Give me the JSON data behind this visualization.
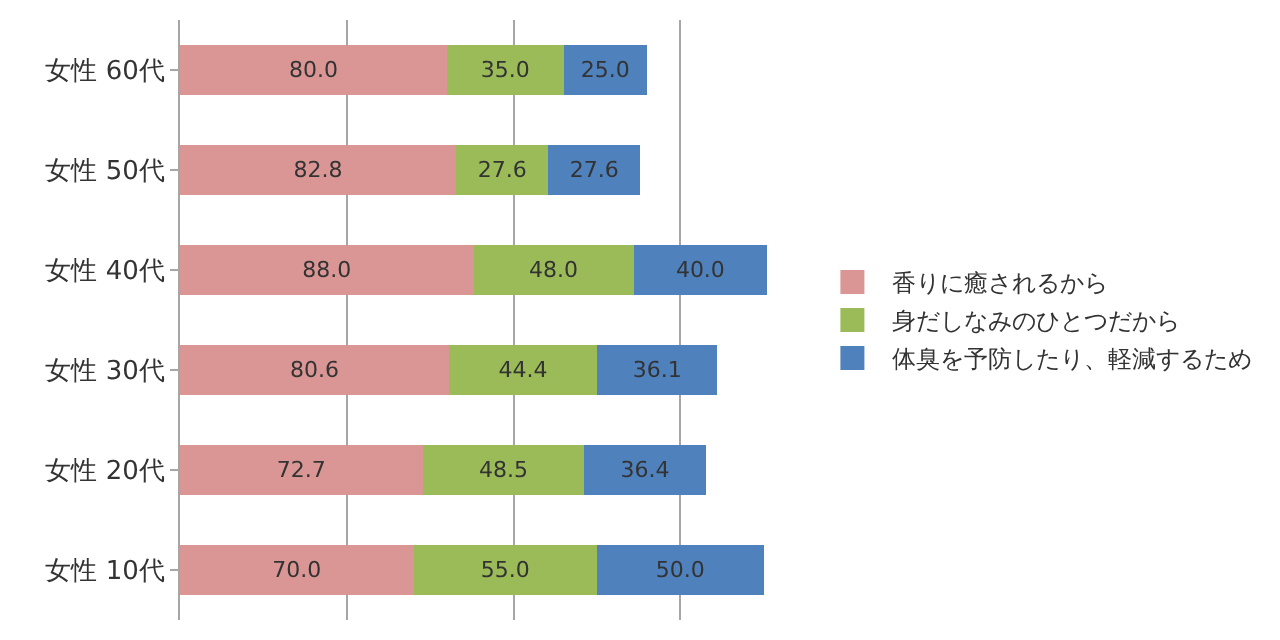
{
  "chart_data": {
    "type": "bar",
    "orientation": "horizontal",
    "stacked": true,
    "categories": [
      "女性 60代",
      "女性 50代",
      "女性 40代",
      "女性 30代",
      "女性 20代",
      "女性 10代"
    ],
    "series": [
      {
        "name": "香りに癒されるから",
        "color": "#d99694",
        "values": [
          80.0,
          82.8,
          88.0,
          80.6,
          72.7,
          70.0
        ],
        "value_labels": [
          "80.0",
          "82.8",
          "88.0",
          "80.6",
          "72.7",
          "70.0"
        ]
      },
      {
        "name": "身だしなみのひとつだから",
        "color": "#9bbb59",
        "values": [
          35.0,
          27.6,
          48.0,
          44.4,
          48.5,
          55.0
        ],
        "value_labels": [
          "35.0",
          "27.6",
          "48.0",
          "44.4",
          "48.5",
          "55.0"
        ]
      },
      {
        "name": "体臭を予防したり、軽減するため",
        "color": "#4f81bd",
        "values": [
          25.0,
          27.6,
          40.0,
          36.1,
          36.4,
          50.0
        ],
        "value_labels": [
          "25.0",
          "27.6",
          "40.0",
          "36.1",
          "36.4",
          "50.0"
        ]
      }
    ],
    "tick_labels": "y",
    "grid": "x",
    "legend": "right"
  }
}
